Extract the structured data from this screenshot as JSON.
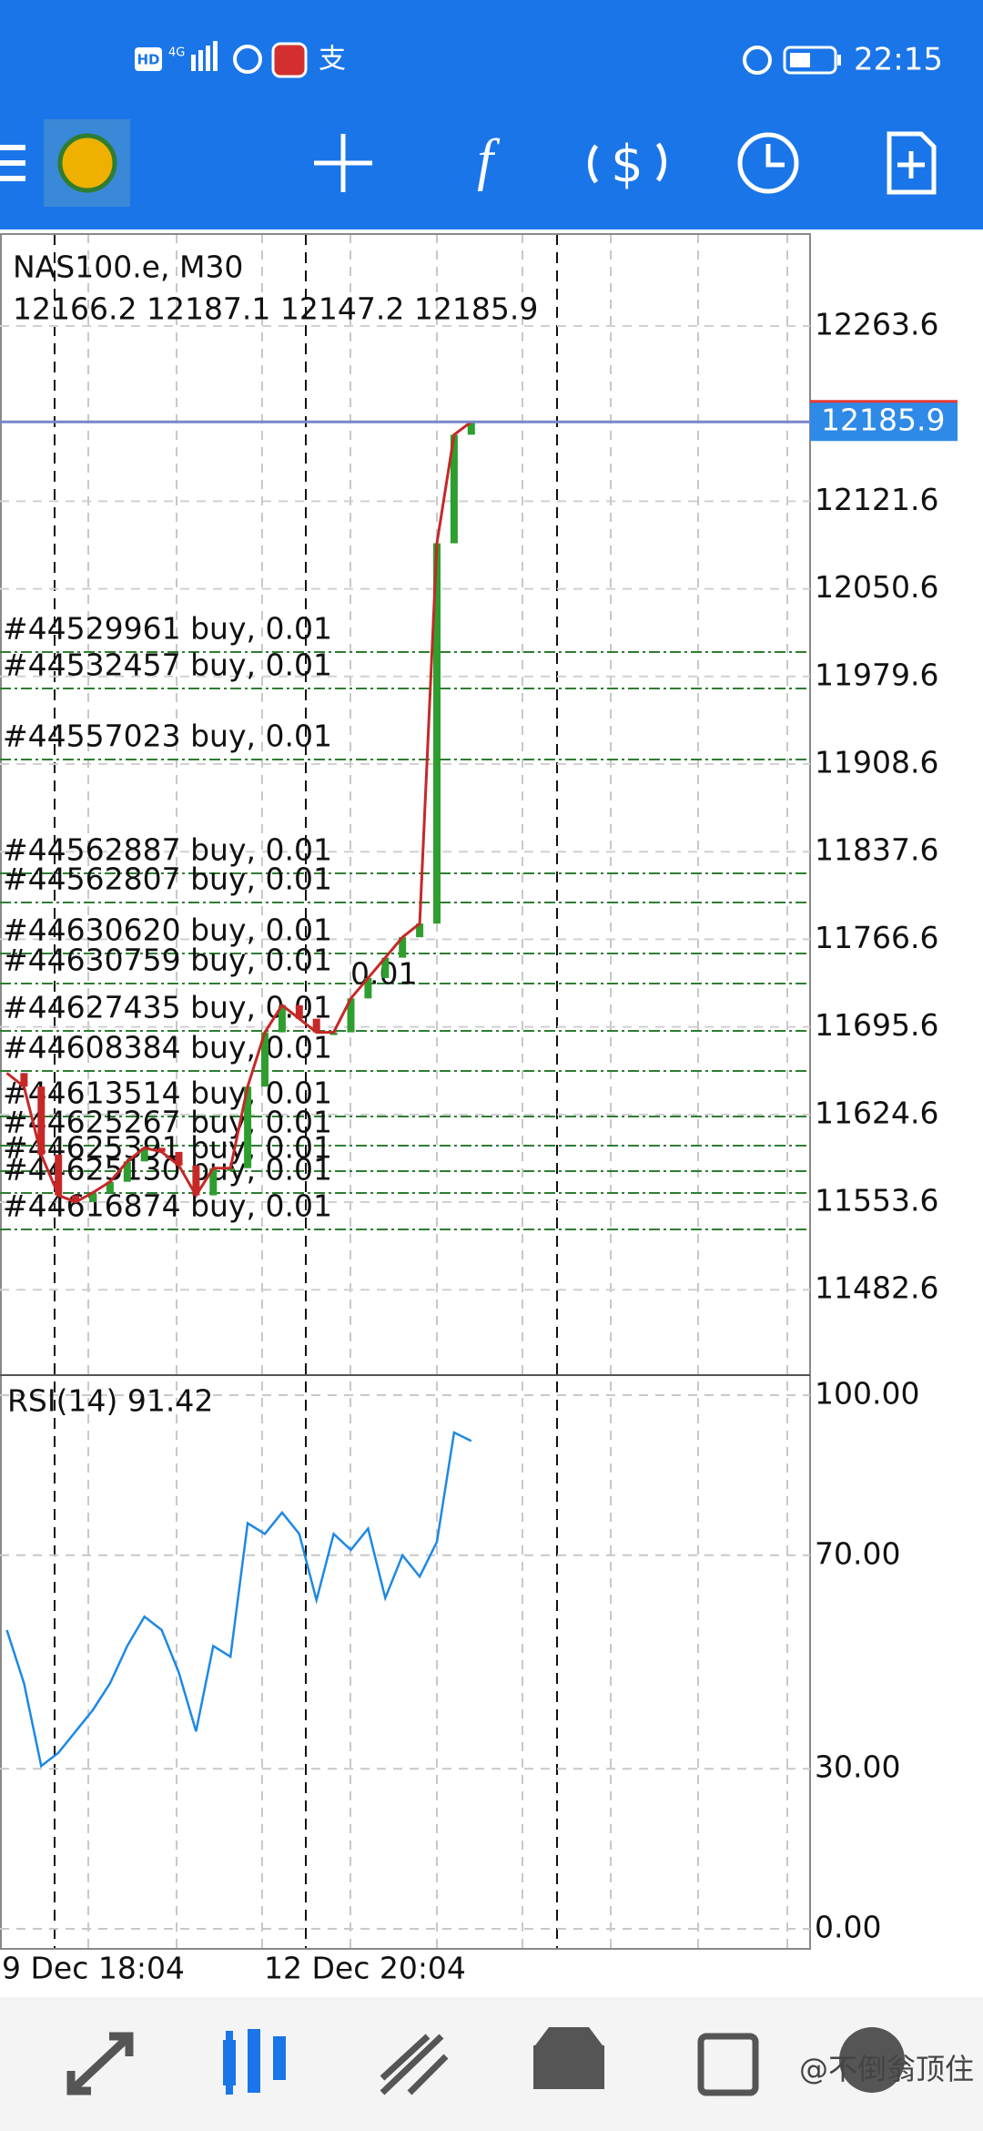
{
  "status_bar": {
    "network": [
      "HD",
      "4G"
    ],
    "pay_icon": "支",
    "time": "22:15"
  },
  "chart": {
    "symbol": "NAS100.e, M30",
    "ohlc": "12166.2 12187.1 12147.2 12185.9",
    "price_axis": {
      "ylim": [
        11413.4,
        12338.1
      ],
      "ticks": [
        {
          "value": 12263.6,
          "label": "12263.6"
        },
        {
          "value": 12121.6,
          "label": "12121.6"
        },
        {
          "value": 12050.6,
          "label": "12050.6"
        },
        {
          "value": 11979.6,
          "label": "11979.6"
        },
        {
          "value": 11908.6,
          "label": "11908.6"
        },
        {
          "value": 11837.6,
          "label": "11837.6"
        },
        {
          "value": 11766.6,
          "label": "11766.6"
        },
        {
          "value": 11695.6,
          "label": "11695.6"
        },
        {
          "value": 11624.6,
          "label": "11624.6"
        },
        {
          "value": 11553.6,
          "label": "11553.6"
        },
        {
          "value": 11482.6,
          "label": "11482.6"
        }
      ]
    },
    "current_price": {
      "value": 12185.9,
      "label": "12185.9"
    },
    "closes": [
      11658.2,
      11647.2,
      11592.1,
      11559.1,
      11553.6,
      11561.3,
      11570.1,
      11586.6,
      11597.6,
      11594.3,
      11583.3,
      11559.1,
      11581.1,
      11581.1,
      11647.2,
      11691.2,
      11713.2,
      11702.2,
      11691.2,
      11691.2,
      11718.7,
      11735.2,
      11751.7,
      11768.3,
      11779.3,
      12087.5,
      12175.5,
      12185.9
    ],
    "orders": [
      "#44529961 buy, 0.01",
      "#44532457 buy, 0.01",
      "#44557023 buy, 0.01",
      "#44562887 buy, 0.01",
      "#44562807 buy, 0.01",
      "#44630620 buy, 0.01",
      "#44630759 buy, 0.01",
      "#44627435 buy, 0.01",
      "#44608384 buy, 0.01",
      "#44613514 buy, 0.01",
      "#44625267 buy, 0.01",
      "#44625391 buy, 0.01",
      "#44625130 buy, 0.01",
      "#44616874 buy, 0.01"
    ],
    "order_fragment": "0.01",
    "rsi": {
      "label": "RSI(14) 91.42",
      "ylim": [
        0,
        100
      ],
      "ticks": [
        {
          "value": 100,
          "label": "100.00"
        },
        {
          "value": 70,
          "label": "70.00"
        },
        {
          "value": 30,
          "label": "30.00"
        },
        {
          "value": 0,
          "label": "0.00"
        }
      ],
      "values": [
        56,
        46,
        30.5,
        33,
        37,
        41,
        46,
        53,
        58.5,
        56,
        48,
        37,
        53,
        51,
        76,
        74,
        78,
        74,
        61.6,
        74,
        71,
        75,
        62,
        70,
        66,
        72.5,
        93,
        91.42
      ]
    },
    "time_labels": [
      "9 Dec 18:04",
      "12 Dec 20:04"
    ]
  },
  "watermark": "@不倒翁顶住"
}
